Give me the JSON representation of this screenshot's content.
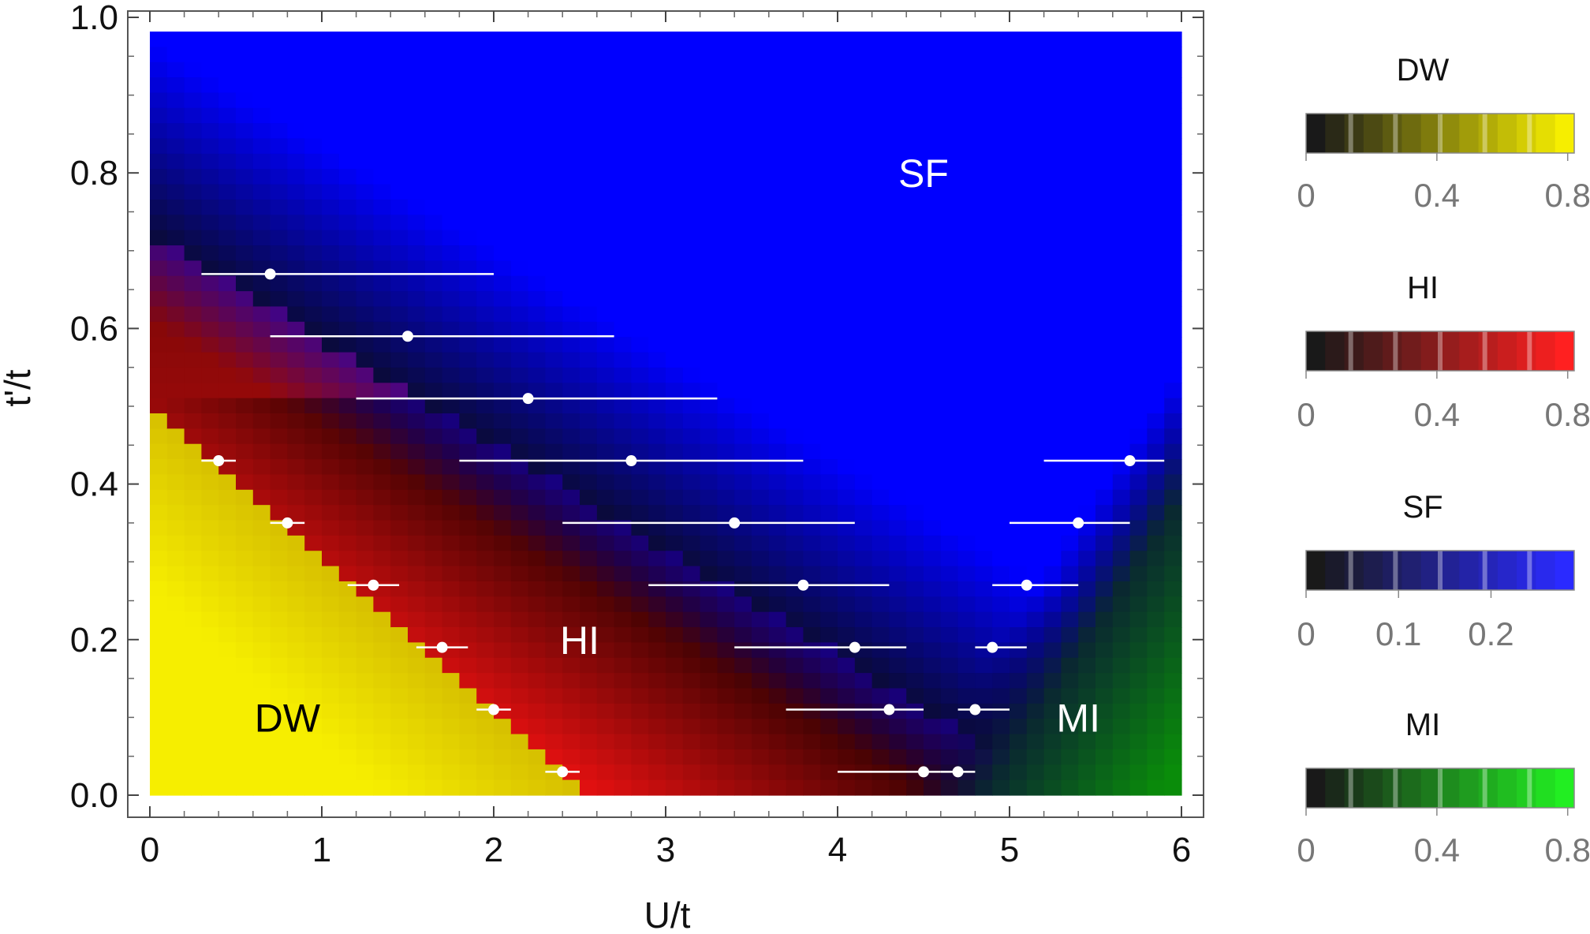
{
  "chart_data": {
    "type": "heatmap",
    "xlabel": "U/t",
    "ylabel": "t'/t",
    "xlim": [
      0,
      6
    ],
    "ylim": [
      0,
      1
    ],
    "x_ticks": [
      "0",
      "1",
      "2",
      "3",
      "4",
      "5",
      "6"
    ],
    "y_ticks": [
      "0.0",
      "0.2",
      "0.4",
      "0.6",
      "0.8",
      "1.0"
    ],
    "grid": false,
    "phase_labels": [
      {
        "text": "SF",
        "x": 4.5,
        "y": 0.8,
        "color": "#ffffff"
      },
      {
        "text": "HI",
        "x": 2.5,
        "y": 0.2,
        "color": "#ffffff"
      },
      {
        "text": "DW",
        "x": 0.8,
        "y": 0.1,
        "color": "#000000"
      },
      {
        "text": "MI",
        "x": 5.4,
        "y": 0.1,
        "color": "#ffffff"
      }
    ],
    "phase_colors": {
      "DW": "#f6ee00",
      "HI": "#e01010",
      "SF": "#0000ff",
      "MI": "#0a8a0a"
    },
    "boundaries": [
      {
        "name": "DW-HI",
        "points": [
          {
            "x": 0.4,
            "y": 0.43,
            "xerr": [
              0.3,
              0.5
            ]
          },
          {
            "x": 0.8,
            "y": 0.35,
            "xerr": [
              0.7,
              0.9
            ]
          },
          {
            "x": 1.3,
            "y": 0.27,
            "xerr": [
              1.15,
              1.45
            ]
          },
          {
            "x": 1.7,
            "y": 0.19,
            "xerr": [
              1.55,
              1.85
            ]
          },
          {
            "x": 2.0,
            "y": 0.11,
            "xerr": [
              1.9,
              2.1
            ]
          },
          {
            "x": 2.4,
            "y": 0.03,
            "xerr": [
              2.3,
              2.5
            ]
          }
        ]
      },
      {
        "name": "HI-SF",
        "points": [
          {
            "x": 0.7,
            "y": 0.67,
            "xerr": [
              0.3,
              2.0
            ]
          },
          {
            "x": 1.5,
            "y": 0.59,
            "xerr": [
              0.7,
              2.7
            ]
          },
          {
            "x": 2.2,
            "y": 0.51,
            "xerr": [
              1.2,
              3.3
            ]
          },
          {
            "x": 2.8,
            "y": 0.43,
            "xerr": [
              1.8,
              3.8
            ]
          },
          {
            "x": 3.4,
            "y": 0.35,
            "xerr": [
              2.4,
              4.1
            ]
          },
          {
            "x": 3.8,
            "y": 0.27,
            "xerr": [
              2.9,
              4.3
            ]
          },
          {
            "x": 4.1,
            "y": 0.19,
            "xerr": [
              3.4,
              4.4
            ]
          },
          {
            "x": 4.3,
            "y": 0.11,
            "xerr": [
              3.7,
              4.5
            ]
          },
          {
            "x": 4.5,
            "y": 0.03,
            "xerr": [
              4.0,
              4.6
            ]
          }
        ]
      },
      {
        "name": "SF-MI",
        "points": [
          {
            "x": 5.7,
            "y": 0.43,
            "xerr": [
              5.2,
              5.9
            ]
          },
          {
            "x": 5.4,
            "y": 0.35,
            "xerr": [
              5.0,
              5.7
            ]
          },
          {
            "x": 5.1,
            "y": 0.27,
            "xerr": [
              4.9,
              5.4
            ]
          },
          {
            "x": 4.9,
            "y": 0.19,
            "xerr": [
              4.8,
              5.1
            ]
          },
          {
            "x": 4.8,
            "y": 0.11,
            "xerr": [
              4.7,
              5.0
            ]
          },
          {
            "x": 4.7,
            "y": 0.03,
            "xerr": [
              4.6,
              4.8
            ]
          }
        ]
      }
    ],
    "colorbars": [
      {
        "title": "DW",
        "color": "#f6ee00",
        "range": [
          0,
          0.82
        ],
        "ticks": [
          {
            "value": 0,
            "label": "0"
          },
          {
            "value": 0.4,
            "label": "0.4"
          },
          {
            "value": 0.8,
            "label": "0.8"
          }
        ]
      },
      {
        "title": "HI",
        "color": "#ff2020",
        "range": [
          0,
          0.82
        ],
        "ticks": [
          {
            "value": 0,
            "label": "0"
          },
          {
            "value": 0.4,
            "label": "0.4"
          },
          {
            "value": 0.8,
            "label": "0.8"
          }
        ]
      },
      {
        "title": "SF",
        "color": "#2a2aff",
        "range": [
          0,
          0.29
        ],
        "ticks": [
          {
            "value": 0,
            "label": "0"
          },
          {
            "value": 0.1,
            "label": "0.1"
          },
          {
            "value": 0.2,
            "label": "0.2"
          }
        ]
      },
      {
        "title": "MI",
        "color": "#22ee22",
        "range": [
          0,
          0.82
        ],
        "ticks": [
          {
            "value": 0,
            "label": "0"
          },
          {
            "value": 0.4,
            "label": "0.4"
          },
          {
            "value": 0.8,
            "label": "0.8"
          }
        ]
      }
    ]
  }
}
